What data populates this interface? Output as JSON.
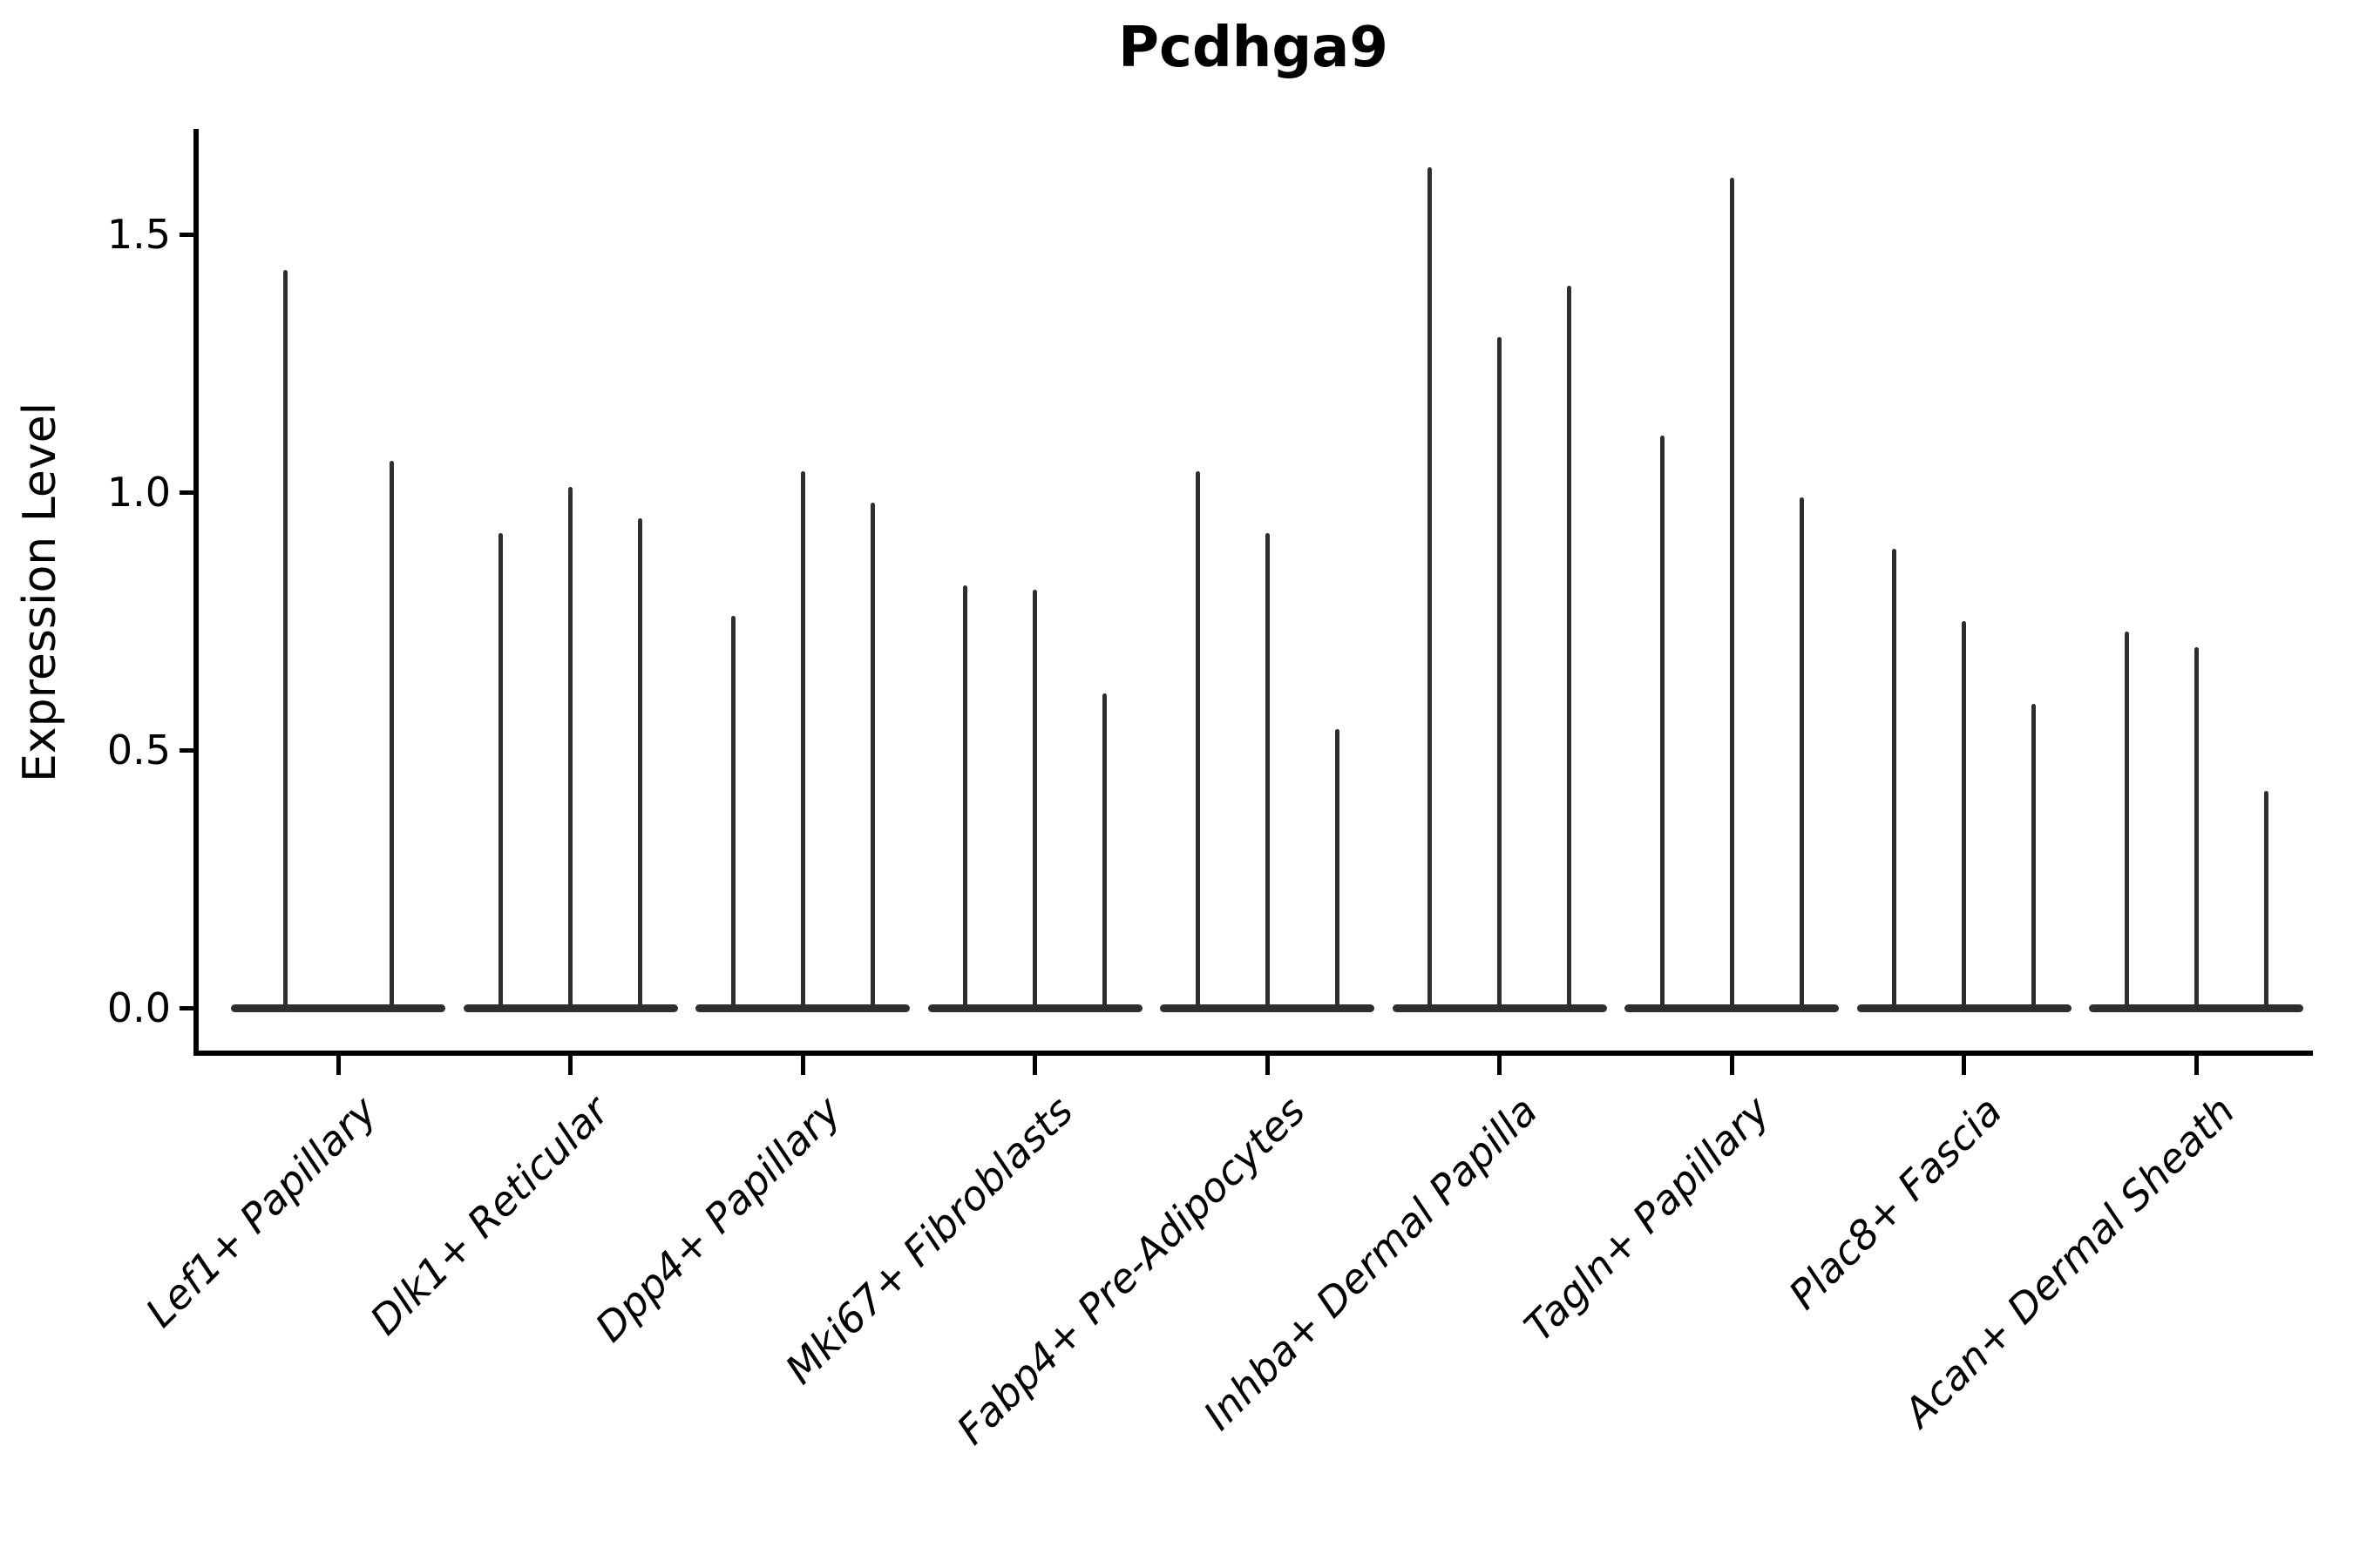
{
  "title": "Pcdhga9",
  "y_axis": {
    "label": "Expression Level",
    "tick_labels": [
      "0.0",
      "0.5",
      "1.0",
      "1.5"
    ]
  },
  "colors": {
    "ink": "#000000",
    "violin": "#2e2e2e",
    "background": "#ffffff"
  },
  "chart_data": {
    "type": "violin",
    "title": "Pcdhga9",
    "xlabel": "",
    "ylabel": "Expression Level",
    "ylim": [
      -0.09,
      1.7
    ],
    "yticks": [
      0.0,
      0.5,
      1.0,
      1.5
    ],
    "grid": false,
    "legend": false,
    "x_tick_label_rotation": 45,
    "x_tick_label_style": "italic",
    "categories": [
      "Lef1+ Papillary",
      "Dlk1+ Reticular",
      "Dpp4+ Papillary",
      "Mki67+ Fibroblasts",
      "Fabp4+ Pre-Adipocytes",
      "Inhba+ Dermal Papilla",
      "Tagln+ Papillary",
      "Plac8+ Fascia",
      "Acan+ Dermal Sheath"
    ],
    "groups": [
      {
        "label": "Lef1+ Papillary",
        "violin_max_values": [
          1.43,
          1.06
        ]
      },
      {
        "label": "Dlk1+ Reticular",
        "violin_max_values": [
          0.92,
          1.01,
          0.95
        ]
      },
      {
        "label": "Dpp4+ Papillary",
        "violin_max_values": [
          0.76,
          1.04,
          0.98
        ]
      },
      {
        "label": "Mki67+ Fibroblasts",
        "violin_max_values": [
          0.82,
          0.81,
          0.61
        ]
      },
      {
        "label": "Fabp4+ Pre-Adipocytes",
        "violin_max_values": [
          1.04,
          0.92,
          0.54
        ]
      },
      {
        "label": "Inhba+ Dermal Papilla",
        "violin_max_values": [
          1.63,
          1.3,
          1.4
        ]
      },
      {
        "label": "Tagln+ Papillary",
        "violin_max_values": [
          1.11,
          1.61,
          0.99
        ]
      },
      {
        "label": "Plac8+ Fascia",
        "violin_max_values": [
          0.89,
          0.75,
          0.59
        ]
      },
      {
        "label": "Acan+ Dermal Sheath",
        "violin_max_values": [
          0.73,
          0.7,
          0.42
        ]
      }
    ],
    "notes": "Each violin is concentrated at 0 expression (flat wide base) with a thin spike rising to its maximum value."
  }
}
